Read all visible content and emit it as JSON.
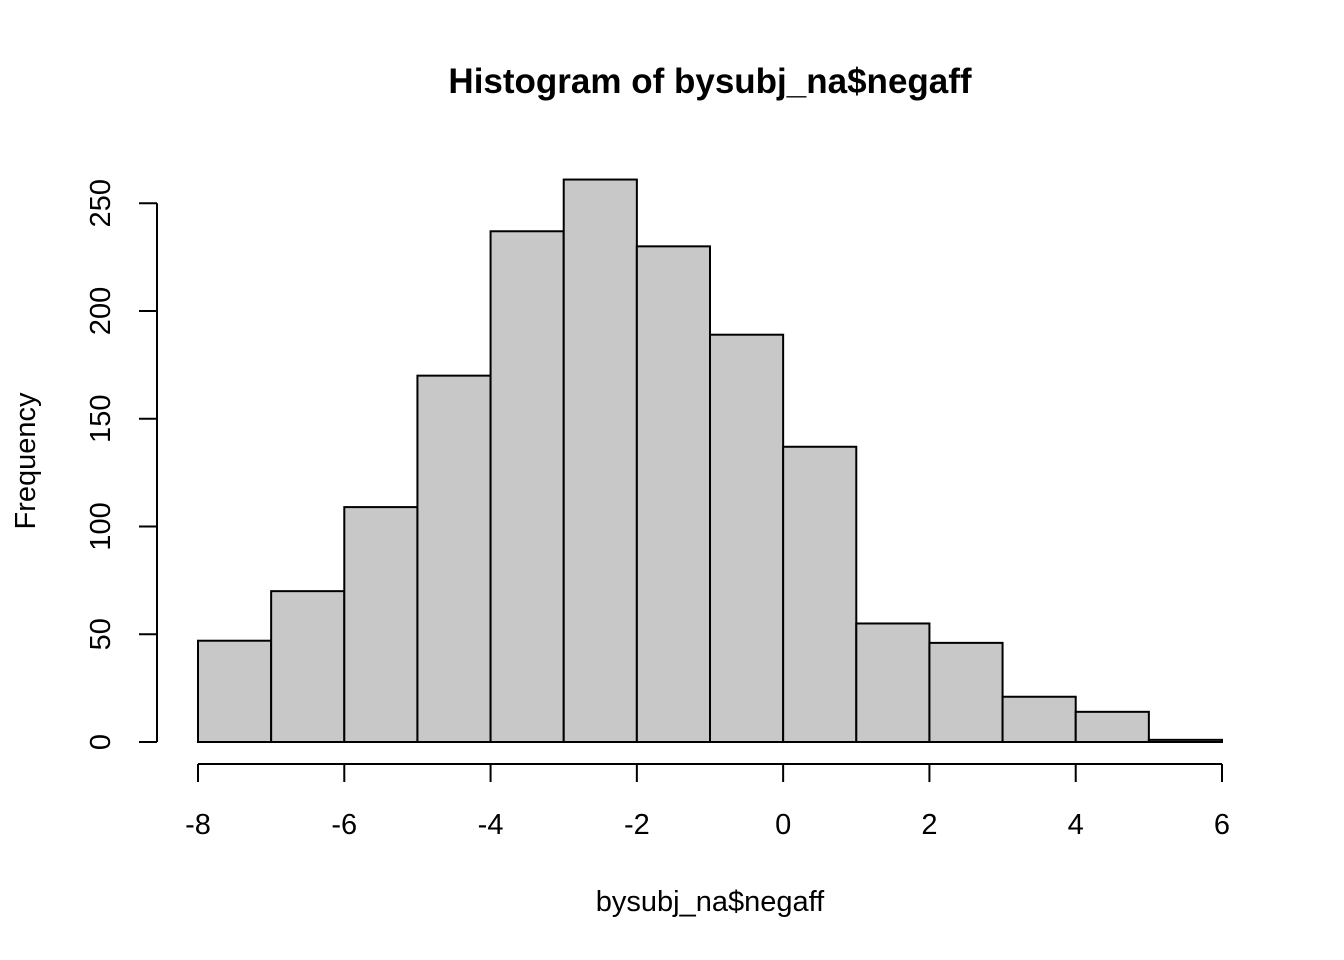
{
  "chart_data": {
    "type": "bar",
    "title": "Histogram of bysubj_na$negaff",
    "xlabel": "bysubj_na$negaff",
    "ylabel": "Frequency",
    "bin_edges": [
      -8,
      -7,
      -6,
      -5,
      -4,
      -3,
      -2,
      -1,
      0,
      1,
      2,
      3,
      4,
      5,
      6
    ],
    "values": [
      47,
      70,
      109,
      170,
      237,
      261,
      230,
      189,
      137,
      55,
      46,
      21,
      14,
      1
    ],
    "xlim": [
      -8,
      6
    ],
    "ylim": [
      0,
      261
    ],
    "x_ticks": [
      "-8",
      "-6",
      "-4",
      "-2",
      "0",
      "2",
      "4",
      "6"
    ],
    "y_ticks": [
      "0",
      "50",
      "100",
      "150",
      "200",
      "250"
    ],
    "grid": false,
    "colors": {
      "bar_fill": "#c8c8c8",
      "bar_stroke": "#000000"
    }
  }
}
